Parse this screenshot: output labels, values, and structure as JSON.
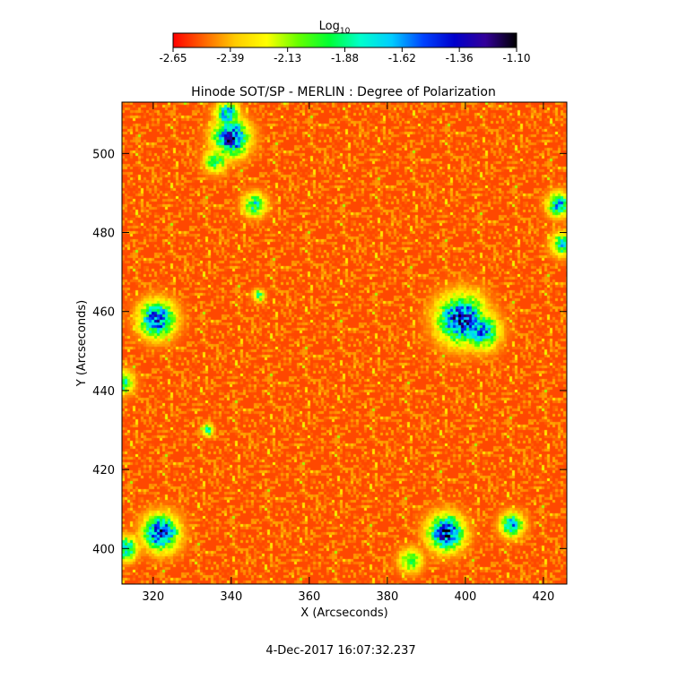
{
  "chart_data": {
    "type": "heatmap",
    "title": "Hinode SOT/SP - MERLIN : Degree of Polarization",
    "xlabel": "X (Arcseconds)",
    "ylabel": "Y (Arcseconds)",
    "xlim": [
      312,
      426
    ],
    "ylim": [
      391,
      513
    ],
    "x_ticks": [
      320,
      340,
      360,
      380,
      400,
      420
    ],
    "y_ticks": [
      400,
      420,
      440,
      460,
      480,
      500
    ],
    "colorbar": {
      "label_base": "Log",
      "label_sub": "10",
      "colormap": "rainbow",
      "range": [
        -2.65,
        -1.1
      ],
      "ticks": [
        "-2.65",
        "-2.39",
        "-2.13",
        "-1.88",
        "-1.62",
        "-1.36",
        "-1.10"
      ],
      "colors": [
        "#ff0000",
        "#ff6600",
        "#ffcc00",
        "#ffff00",
        "#66ff00",
        "#00ff33",
        "#00ffcc",
        "#00ccff",
        "#0044ff",
        "#0000cc",
        "#330099",
        "#000000"
      ]
    },
    "background_level": -2.55,
    "strong_regions": [
      {
        "x": 340,
        "y": 504,
        "peak": -1.2,
        "radius": 3
      },
      {
        "x": 339,
        "y": 510,
        "peak": -1.5,
        "radius": 2
      },
      {
        "x": 321,
        "y": 458,
        "peak": -1.3,
        "radius": 3
      },
      {
        "x": 399,
        "y": 458,
        "peak": -1.2,
        "radius": 4
      },
      {
        "x": 404,
        "y": 455,
        "peak": -1.5,
        "radius": 3
      },
      {
        "x": 322,
        "y": 404,
        "peak": -1.25,
        "radius": 3
      },
      {
        "x": 395,
        "y": 404,
        "peak": -1.2,
        "radius": 3
      },
      {
        "x": 412,
        "y": 406,
        "peak": -1.55,
        "radius": 2
      },
      {
        "x": 424,
        "y": 487,
        "peak": -1.55,
        "radius": 2
      },
      {
        "x": 425,
        "y": 477,
        "peak": -1.7,
        "radius": 2
      },
      {
        "x": 312,
        "y": 442,
        "peak": -1.75,
        "radius": 2
      },
      {
        "x": 313,
        "y": 400,
        "peak": -1.6,
        "radius": 2
      },
      {
        "x": 346,
        "y": 487,
        "peak": -1.75,
        "radius": 2
      },
      {
        "x": 347,
        "y": 464,
        "peak": -1.8,
        "radius": 1
      },
      {
        "x": 334,
        "y": 430,
        "peak": -1.8,
        "radius": 1
      },
      {
        "x": 336,
        "y": 498,
        "peak": -1.85,
        "radius": 2
      },
      {
        "x": 386,
        "y": 397,
        "peak": -1.85,
        "radius": 2
      }
    ],
    "footer": "4-Dec-2017 16:07:32.237"
  }
}
